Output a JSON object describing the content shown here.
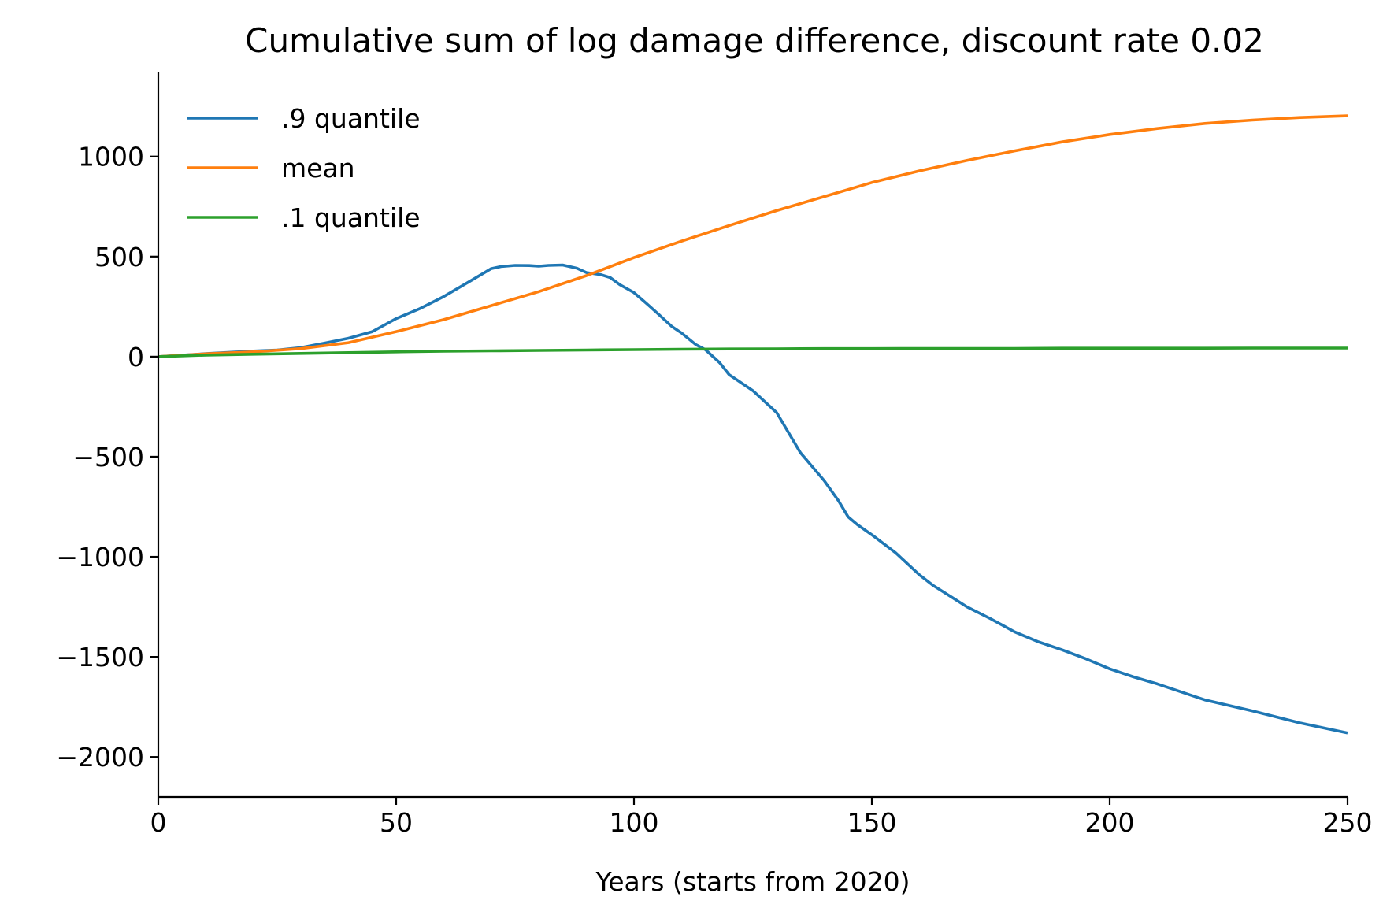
{
  "chart_data": {
    "type": "line",
    "title": "Cumulative sum of log damage difference, discount rate 0.02",
    "xlabel": "Years (starts from 2020)",
    "ylabel": "",
    "xlim": [
      0,
      250
    ],
    "ylim": [
      -2200,
      1420
    ],
    "xticks": [
      0,
      50,
      100,
      150,
      200,
      250
    ],
    "xtick_labels": [
      "0",
      "50",
      "100",
      "150",
      "200",
      "250"
    ],
    "yticks": [
      1000,
      500,
      0,
      -500,
      -1000,
      -1500,
      -2000
    ],
    "ytick_labels": [
      "1000",
      "500",
      "0",
      "−500",
      "−1000",
      "−1500",
      "−2000"
    ],
    "grid": false,
    "legend_position": "top-left",
    "series": [
      {
        "name": ".9 quantile",
        "color": "#1f77b4",
        "x": [
          0,
          10,
          20,
          25,
          30,
          35,
          40,
          45,
          50,
          55,
          60,
          65,
          70,
          72,
          75,
          78,
          80,
          82,
          85,
          88,
          90,
          93,
          95,
          97,
          100,
          103,
          105,
          108,
          110,
          113,
          115,
          118,
          120,
          125,
          130,
          135,
          140,
          143,
          145,
          147,
          150,
          155,
          160,
          163,
          165,
          170,
          175,
          180,
          185,
          190,
          195,
          200,
          205,
          210,
          215,
          220,
          230,
          240,
          250
        ],
        "y": [
          0,
          15,
          28,
          33,
          45,
          68,
          92,
          125,
          190,
          240,
          300,
          370,
          440,
          450,
          456,
          455,
          452,
          456,
          458,
          442,
          420,
          410,
          395,
          360,
          320,
          258,
          215,
          150,
          118,
          60,
          35,
          -30,
          -90,
          -170,
          -280,
          -480,
          -620,
          -720,
          -800,
          -840,
          -890,
          -980,
          -1090,
          -1145,
          -1175,
          -1250,
          -1310,
          -1375,
          -1425,
          -1465,
          -1510,
          -1560,
          -1600,
          -1635,
          -1675,
          -1715,
          -1770,
          -1830,
          -1880
        ]
      },
      {
        "name": "mean",
        "color": "#ff7f0e",
        "x": [
          0,
          10,
          20,
          30,
          40,
          50,
          60,
          70,
          80,
          90,
          100,
          110,
          120,
          130,
          140,
          150,
          160,
          170,
          180,
          190,
          200,
          210,
          220,
          230,
          240,
          250
        ],
        "y": [
          0,
          14,
          24,
          40,
          70,
          125,
          185,
          255,
          325,
          405,
          495,
          577,
          655,
          730,
          800,
          870,
          928,
          980,
          1028,
          1073,
          1110,
          1140,
          1165,
          1182,
          1195,
          1203
        ]
      },
      {
        "name": ".1 quantile",
        "color": "#2ca02c",
        "x": [
          0,
          10,
          20,
          30,
          40,
          50,
          60,
          70,
          80,
          90,
          100,
          110,
          120,
          130,
          140,
          150,
          160,
          170,
          180,
          190,
          200,
          210,
          220,
          230,
          240,
          250
        ],
        "y": [
          0,
          8,
          12,
          16,
          20,
          24,
          27,
          29,
          31,
          33,
          35,
          37,
          38,
          39,
          40,
          40,
          41,
          41,
          41,
          42,
          42,
          42,
          42,
          43,
          43,
          43
        ]
      }
    ]
  }
}
